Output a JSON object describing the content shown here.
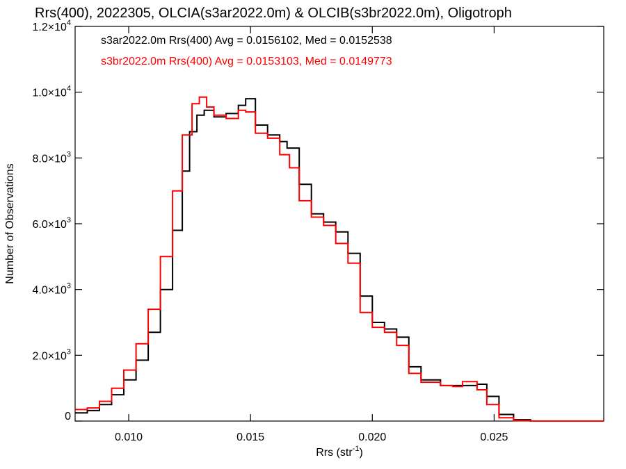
{
  "chart_data": {
    "type": "line",
    "title": "Rrs(400), 2022305, OLCIA(s3ar2022.0m) & OLCIB(s3br2022.0m), Oligotroph",
    "xlabel": "Rrs (str",
    "xlabel_sup": "-1",
    "xlabel_close": ")",
    "ylabel": "Number of Observations",
    "xlim": [
      0.0078,
      0.0295
    ],
    "ylim": [
      0,
      12000
    ],
    "x_ticks": [
      {
        "value": 0.01,
        "label": "0.010"
      },
      {
        "value": 0.015,
        "label": "0.015"
      },
      {
        "value": 0.02,
        "label": "0.020"
      },
      {
        "value": 0.025,
        "label": "0.025"
      }
    ],
    "y_ticks": [
      {
        "value": 0,
        "label": "0",
        "sup": ""
      },
      {
        "value": 2000,
        "label": "2.0×10",
        "sup": "3"
      },
      {
        "value": 4000,
        "label": "4.0×10",
        "sup": "3"
      },
      {
        "value": 6000,
        "label": "6.0×10",
        "sup": "3"
      },
      {
        "value": 8000,
        "label": "8.0×10",
        "sup": "3"
      },
      {
        "value": 10000,
        "label": "1.0×10",
        "sup": "4"
      },
      {
        "value": 12000,
        "label": "1.2×10",
        "sup": "4"
      }
    ],
    "grid": false,
    "legend_position": "top-left",
    "series": [
      {
        "name": "s3ar2022.0m Rrs(400) Avg = 0.0156102, Med = 0.0152538",
        "color": "#000000",
        "points": [
          [
            0.0078,
            250
          ],
          [
            0.0083,
            320
          ],
          [
            0.0088,
            500
          ],
          [
            0.0093,
            800
          ],
          [
            0.0098,
            1250
          ],
          [
            0.0103,
            1850
          ],
          [
            0.0108,
            2700
          ],
          [
            0.0113,
            4000
          ],
          [
            0.0118,
            5800
          ],
          [
            0.0122,
            7600
          ],
          [
            0.0125,
            8800
          ],
          [
            0.0128,
            9300
          ],
          [
            0.0131,
            9450
          ],
          [
            0.0135,
            9250
          ],
          [
            0.014,
            9350
          ],
          [
            0.0145,
            9600
          ],
          [
            0.0148,
            9800
          ],
          [
            0.0152,
            9000
          ],
          [
            0.0157,
            8700
          ],
          [
            0.0162,
            8500
          ],
          [
            0.0165,
            8300
          ],
          [
            0.017,
            7200
          ],
          [
            0.0175,
            6300
          ],
          [
            0.018,
            6050
          ],
          [
            0.0185,
            5750
          ],
          [
            0.019,
            5100
          ],
          [
            0.0195,
            3800
          ],
          [
            0.02,
            3000
          ],
          [
            0.0205,
            2800
          ],
          [
            0.021,
            2550
          ],
          [
            0.0215,
            1650
          ],
          [
            0.022,
            1250
          ],
          [
            0.0228,
            1080
          ],
          [
            0.0236,
            1080
          ],
          [
            0.0243,
            1120
          ],
          [
            0.0247,
            750
          ],
          [
            0.0252,
            200
          ],
          [
            0.0258,
            40
          ],
          [
            0.0265,
            0
          ],
          [
            0.0295,
            0
          ]
        ]
      },
      {
        "name": "s3br2022.0m Rrs(400) Avg = 0.0153103, Med = 0.0149773",
        "color": "#ff0000",
        "points": [
          [
            0.0078,
            350
          ],
          [
            0.0083,
            400
          ],
          [
            0.0088,
            600
          ],
          [
            0.0093,
            1000
          ],
          [
            0.0098,
            1550
          ],
          [
            0.0103,
            2350
          ],
          [
            0.0108,
            3400
          ],
          [
            0.0113,
            5000
          ],
          [
            0.0118,
            7000
          ],
          [
            0.0122,
            8700
          ],
          [
            0.0126,
            9650
          ],
          [
            0.0129,
            9850
          ],
          [
            0.0132,
            9550
          ],
          [
            0.0135,
            9300
          ],
          [
            0.014,
            9200
          ],
          [
            0.0145,
            9450
          ],
          [
            0.0148,
            9400
          ],
          [
            0.0152,
            8750
          ],
          [
            0.0157,
            8600
          ],
          [
            0.0162,
            8100
          ],
          [
            0.0166,
            7700
          ],
          [
            0.017,
            6700
          ],
          [
            0.0175,
            6200
          ],
          [
            0.018,
            5950
          ],
          [
            0.0185,
            5400
          ],
          [
            0.019,
            4800
          ],
          [
            0.0195,
            3300
          ],
          [
            0.02,
            2850
          ],
          [
            0.0205,
            2700
          ],
          [
            0.021,
            2300
          ],
          [
            0.0215,
            1450
          ],
          [
            0.022,
            1180
          ],
          [
            0.0228,
            1080
          ],
          [
            0.0233,
            1050
          ],
          [
            0.0237,
            1200
          ],
          [
            0.0243,
            950
          ],
          [
            0.0247,
            500
          ],
          [
            0.0252,
            100
          ],
          [
            0.0258,
            10
          ],
          [
            0.0265,
            0
          ],
          [
            0.0295,
            0
          ]
        ]
      }
    ]
  }
}
